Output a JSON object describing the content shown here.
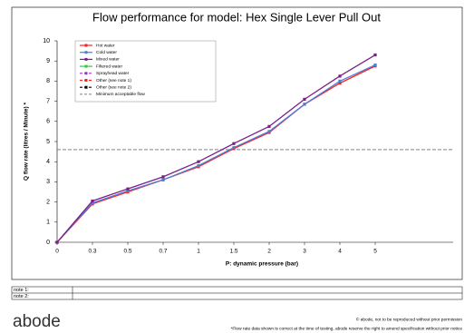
{
  "chart_data": {
    "type": "line",
    "title": "Flow performance for model: Hex Single Lever Pull Out",
    "x_label": "P: dynamic pressure (bar)",
    "y_label": "Q flow rate (litres / Minute) *",
    "categories": [
      "0",
      "0.3",
      "0.5",
      "0.7",
      "1",
      "1.5",
      "2",
      "3",
      "4",
      "5"
    ],
    "ylim": [
      0,
      10
    ],
    "yticks": [
      0,
      1,
      2,
      3,
      4,
      5,
      6,
      7,
      8,
      9,
      10
    ],
    "series": [
      {
        "name": "Hot water",
        "color": "#ff2020",
        "dash": false,
        "values": [
          0,
          1.9,
          2.5,
          3.1,
          3.75,
          4.65,
          5.45,
          6.85,
          7.9,
          8.75
        ]
      },
      {
        "name": "Cold water",
        "color": "#4a7fd8",
        "dash": false,
        "values": [
          0,
          1.95,
          2.55,
          3.1,
          3.8,
          4.7,
          5.5,
          6.85,
          8.0,
          8.8
        ]
      },
      {
        "name": "Mixed water",
        "color": "#7a1f8a",
        "dash": false,
        "values": [
          0,
          2.05,
          2.65,
          3.25,
          4.0,
          4.9,
          5.75,
          7.1,
          8.25,
          9.3
        ]
      },
      {
        "name": "Filtered water",
        "color": "#33cc33",
        "dash": false,
        "values": [
          null,
          null,
          null,
          null,
          null,
          null,
          null,
          null,
          null,
          null
        ]
      },
      {
        "name": "Sprayhead water",
        "color": "#9933cc",
        "dash": true,
        "values": [
          null,
          null,
          null,
          null,
          null,
          null,
          null,
          null,
          null,
          null
        ]
      },
      {
        "name": "Other (see note 1)",
        "color": "#ff2020",
        "dash": true,
        "values": [
          null,
          null,
          null,
          null,
          null,
          null,
          null,
          null,
          null,
          null
        ]
      },
      {
        "name": "Other (see note 2)",
        "color": "#000000",
        "dash": true,
        "values": [
          null,
          null,
          null,
          null,
          null,
          null,
          null,
          null,
          null,
          null
        ]
      }
    ],
    "reference_line": {
      "name": "Minimum acceptable flow",
      "value": 4.6,
      "color": "#808080"
    }
  },
  "notes": {
    "rows": [
      "note 1:",
      "note 2:"
    ]
  },
  "footer": {
    "logo": "abode",
    "copyright": "© abode, not to be reproduced without prior permission",
    "disclaimer": "*Flow rate data shown is correct at the time of testing, abode reserve the right to amend specification without prior notice"
  }
}
